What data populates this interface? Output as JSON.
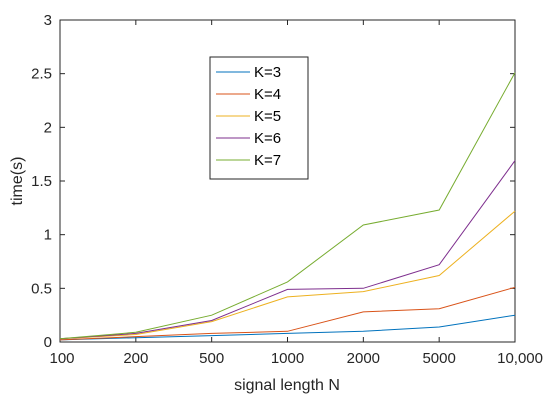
{
  "chart_data": {
    "type": "line",
    "xlabel": "signal length N",
    "ylabel": "time(s)",
    "categories": [
      "100",
      "200",
      "500",
      "1000",
      "2000",
      "5000",
      "10,000"
    ],
    "ylim": [
      0,
      3
    ],
    "yticks": [
      "0",
      "0.5",
      "1",
      "1.5",
      "2",
      "2.5",
      "3"
    ],
    "legend_position": "upper-center",
    "grid": false,
    "series": [
      {
        "name": "K=3",
        "color": "#0072BD",
        "values": [
          0.02,
          0.04,
          0.06,
          0.08,
          0.1,
          0.14,
          0.25
        ]
      },
      {
        "name": "K=4",
        "color": "#D95319",
        "values": [
          0.02,
          0.05,
          0.08,
          0.1,
          0.28,
          0.31,
          0.51
        ]
      },
      {
        "name": "K=5",
        "color": "#EDB120",
        "values": [
          0.03,
          0.07,
          0.19,
          0.42,
          0.47,
          0.62,
          1.22
        ]
      },
      {
        "name": "K=6",
        "color": "#7E2F8E",
        "values": [
          0.03,
          0.08,
          0.2,
          0.49,
          0.5,
          0.72,
          1.69
        ]
      },
      {
        "name": "K=7",
        "color": "#77AC30",
        "values": [
          0.03,
          0.09,
          0.25,
          0.56,
          1.09,
          1.23,
          2.51
        ]
      }
    ]
  }
}
